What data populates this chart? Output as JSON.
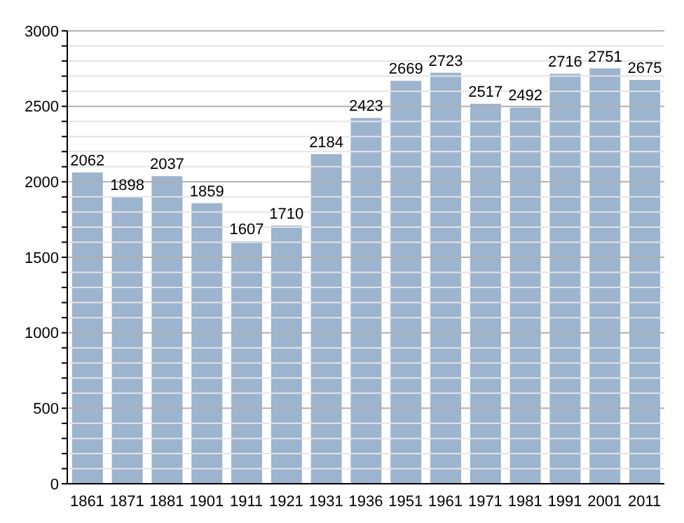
{
  "chart_data": {
    "type": "bar",
    "categories": [
      "1861",
      "1871",
      "1881",
      "1901",
      "1911",
      "1921",
      "1931",
      "1936",
      "1951",
      "1961",
      "1971",
      "1981",
      "1991",
      "2001",
      "2011"
    ],
    "values": [
      2062,
      1898,
      2037,
      1859,
      1607,
      1710,
      2184,
      2423,
      2669,
      2723,
      2517,
      2492,
      2716,
      2751,
      2675
    ],
    "color": "#9db4cf",
    "data_labels": true,
    "ylim": [
      0,
      3000
    ],
    "yticks": [
      0,
      {
        "value": 100,
        "label": null
      },
      {
        "value": 200,
        "label": null
      },
      {
        "value": 300,
        "label": null
      },
      {
        "value": 400,
        "label": null
      },
      500,
      {
        "value": 600,
        "label": null
      },
      {
        "value": 700,
        "label": null
      },
      {
        "value": 800,
        "label": null
      },
      {
        "value": 900,
        "label": null
      },
      1000,
      {
        "value": 1100,
        "label": null
      },
      {
        "value": 1200,
        "label": null
      },
      {
        "value": 1300,
        "label": null
      },
      {
        "value": 1400,
        "label": null
      },
      1500,
      {
        "value": 1600,
        "label": null
      },
      {
        "value": 1700,
        "label": null
      },
      {
        "value": 1800,
        "label": null
      },
      {
        "value": 1900,
        "label": null
      },
      2000,
      {
        "value": 2100,
        "label": null
      },
      {
        "value": 2200,
        "label": null
      },
      {
        "value": 2300,
        "label": null
      },
      {
        "value": 2400,
        "label": null
      },
      2500,
      {
        "value": 2600,
        "label": null
      },
      {
        "value": 2700,
        "label": null
      },
      {
        "value": 2800,
        "label": null
      },
      {
        "value": 2900,
        "label": null
      },
      3000
    ],
    "grid": "y"
  }
}
